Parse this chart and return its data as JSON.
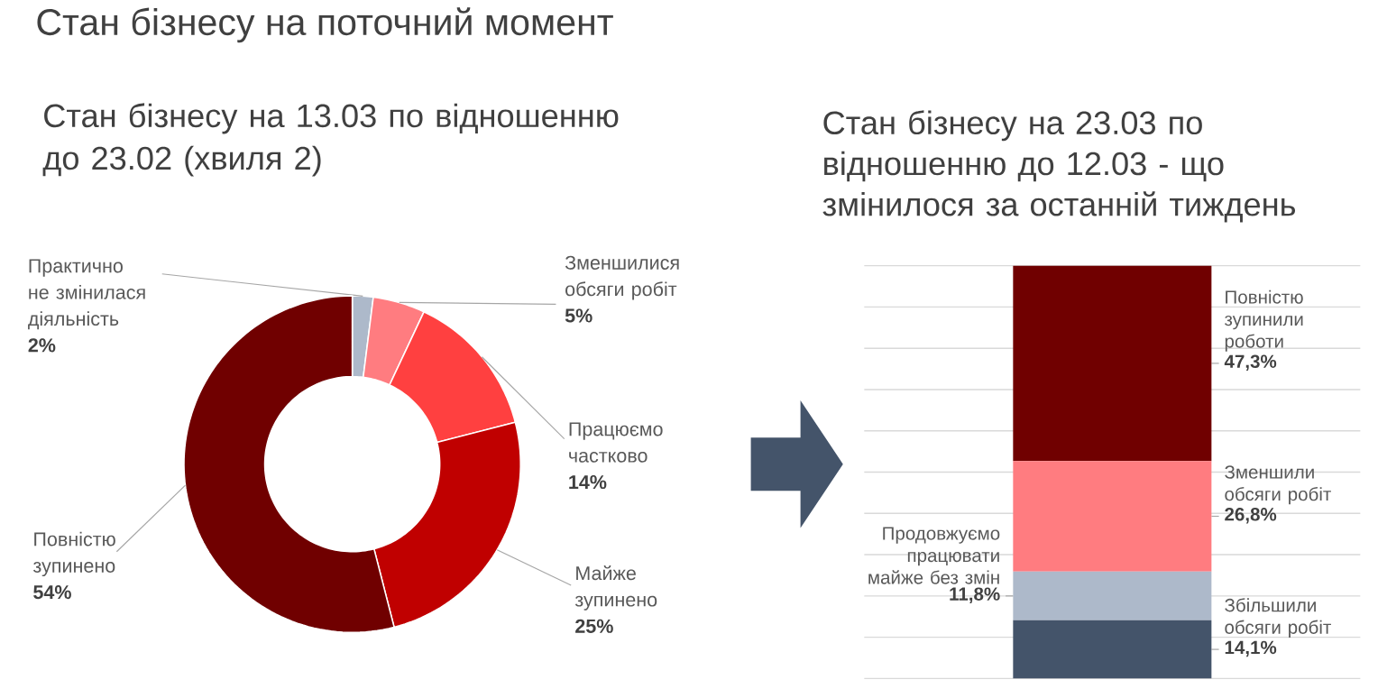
{
  "chart_data": [
    {
      "type": "donut",
      "title": "Стан бізнесу на поточний момент",
      "subtitle": "Стан бізнесу на 13.03 по відношенню до 23.02 (хвиля 2)",
      "categories": [
        "Практично не змінилася діяльність",
        "Зменшилися обсяги робіт",
        "Працюємо частково",
        "Майже зупинено",
        "Повністю зупинено"
      ],
      "values": [
        2,
        5,
        14,
        25,
        54
      ],
      "value_labels": [
        "2%",
        "5%",
        "14%",
        "25%",
        "54%"
      ],
      "colors": [
        "#adb9ca",
        "#ff7c80",
        "#ff4040",
        "#c00000",
        "#700000"
      ]
    },
    {
      "type": "bar",
      "title": "Стан бізнесу на 23.03 по відношенню до 12.03 - що змінилося за останній тиждень",
      "categories": [
        null
      ],
      "stacked": true,
      "grid": "y",
      "tick_labels": false,
      "ylim": [
        0,
        100
      ],
      "yticks": [
        0,
        10,
        20,
        30,
        40,
        50,
        60,
        70,
        80,
        90,
        100
      ],
      "series": [
        {
          "name": "Збільшили обсяги робіт",
          "color": "#44546a",
          "values": [
            14.1
          ],
          "value_labels": [
            "14,1%"
          ]
        },
        {
          "name": "Продовжуємо працювати майже без змін",
          "color": "#adb9ca",
          "values": [
            11.8
          ],
          "value_labels": [
            "11,8%"
          ]
        },
        {
          "name": "Зменшили обсяги робіт",
          "color": "#ff7c80",
          "values": [
            26.8
          ],
          "value_labels": [
            "26,8%"
          ]
        },
        {
          "name": "Повністю зупинили роботи",
          "color": "#700000",
          "values": [
            47.3
          ],
          "value_labels": [
            "47,3%"
          ]
        }
      ]
    }
  ]
}
